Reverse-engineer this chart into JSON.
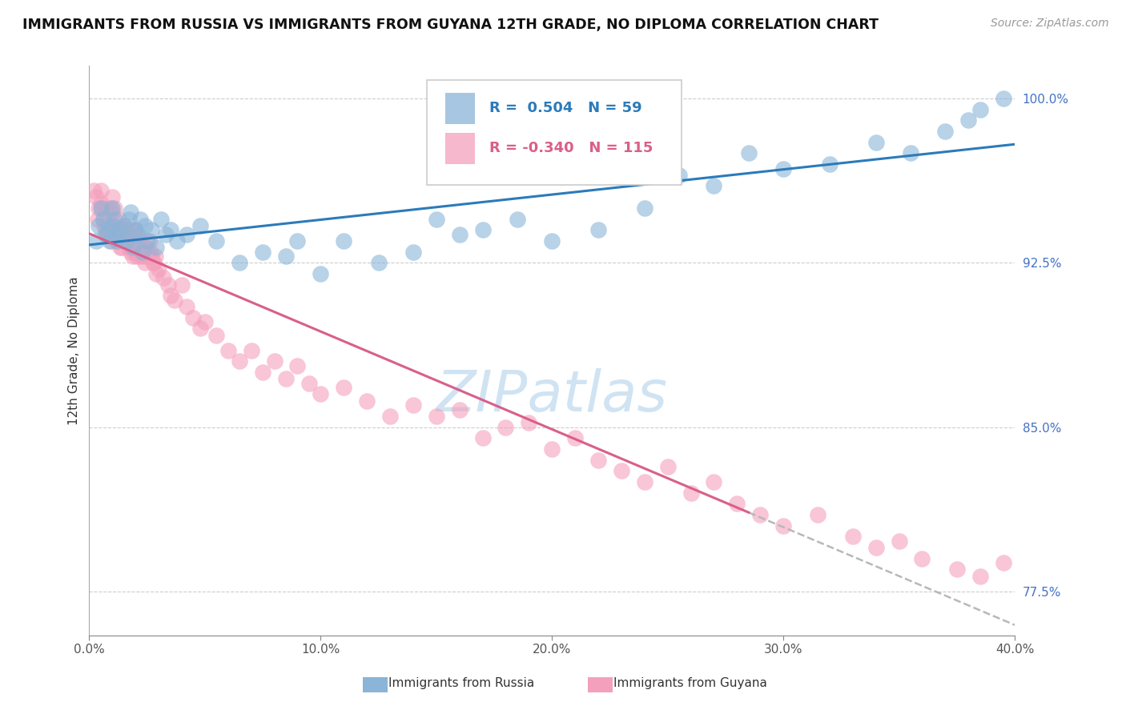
{
  "title": "IMMIGRANTS FROM RUSSIA VS IMMIGRANTS FROM GUYANA 12TH GRADE, NO DIPLOMA CORRELATION CHART",
  "source": "Source: ZipAtlas.com",
  "xlabel_russia": "Immigrants from Russia",
  "xlabel_guyana": "Immigrants from Guyana",
  "ylabel": "12th Grade, No Diploma",
  "x_min": 0.0,
  "x_max": 40.0,
  "y_min": 75.5,
  "y_max": 101.5,
  "y_ticks": [
    77.5,
    85.0,
    92.5,
    100.0
  ],
  "x_ticks": [
    0.0,
    10.0,
    20.0,
    30.0,
    40.0
  ],
  "r_russia": 0.504,
  "n_russia": 59,
  "r_guyana": -0.34,
  "n_guyana": 115,
  "color_russia": "#8ab4d8",
  "color_guyana": "#f4a0bc",
  "line_color_russia": "#2b7bba",
  "line_color_guyana": "#d95f8a",
  "watermark_color": "#c8dff0",
  "legend_box_color": "#e8f0fa",
  "russia_x": [
    0.3,
    0.4,
    0.5,
    0.6,
    0.7,
    0.8,
    0.9,
    1.0,
    1.0,
    1.1,
    1.2,
    1.3,
    1.4,
    1.5,
    1.6,
    1.7,
    1.8,
    1.9,
    2.0,
    2.1,
    2.2,
    2.3,
    2.4,
    2.5,
    2.7,
    2.9,
    3.1,
    3.3,
    3.5,
    3.8,
    4.2,
    4.8,
    5.5,
    6.5,
    7.5,
    8.5,
    9.0,
    10.0,
    11.0,
    12.5,
    14.0,
    15.0,
    16.0,
    17.0,
    18.5,
    20.0,
    22.0,
    24.0,
    25.5,
    27.0,
    28.5,
    30.0,
    32.0,
    34.0,
    35.5,
    37.0,
    38.0,
    38.5,
    39.5
  ],
  "russia_y": [
    93.5,
    94.2,
    95.0,
    94.5,
    93.8,
    94.0,
    93.5,
    94.2,
    95.0,
    94.5,
    93.5,
    94.0,
    93.8,
    94.2,
    93.5,
    94.5,
    94.8,
    93.2,
    94.0,
    93.8,
    94.5,
    93.0,
    94.2,
    93.5,
    94.0,
    93.2,
    94.5,
    93.8,
    94.0,
    93.5,
    93.8,
    94.2,
    93.5,
    92.5,
    93.0,
    92.8,
    93.5,
    92.0,
    93.5,
    92.5,
    93.0,
    94.5,
    93.8,
    94.0,
    94.5,
    93.5,
    94.0,
    95.0,
    96.5,
    96.0,
    97.5,
    96.8,
    97.0,
    98.0,
    97.5,
    98.5,
    99.0,
    99.5,
    100.0
  ],
  "guyana_x": [
    0.2,
    0.3,
    0.4,
    0.5,
    0.5,
    0.6,
    0.7,
    0.7,
    0.8,
    0.8,
    0.9,
    0.9,
    1.0,
    1.0,
    1.1,
    1.1,
    1.2,
    1.2,
    1.3,
    1.4,
    1.4,
    1.5,
    1.5,
    1.6,
    1.7,
    1.7,
    1.8,
    1.8,
    1.9,
    2.0,
    2.0,
    2.1,
    2.2,
    2.2,
    2.3,
    2.4,
    2.5,
    2.5,
    2.6,
    2.7,
    2.8,
    2.9,
    3.0,
    3.2,
    3.4,
    3.5,
    3.7,
    4.0,
    4.2,
    4.5,
    4.8,
    5.0,
    5.5,
    6.0,
    6.5,
    7.0,
    7.5,
    8.0,
    8.5,
    9.0,
    9.5,
    10.0,
    11.0,
    12.0,
    13.0,
    14.0,
    15.0,
    16.0,
    17.0,
    18.0,
    19.0,
    20.0,
    21.0,
    22.0,
    23.0,
    24.0,
    25.0,
    26.0,
    27.0,
    28.0,
    29.0,
    30.0,
    31.5,
    33.0,
    34.0,
    35.0,
    36.0,
    37.5,
    38.5,
    39.5,
    0.35,
    0.55,
    0.65,
    0.75,
    0.85,
    0.95,
    1.05,
    1.15,
    1.25,
    1.35,
    1.45,
    1.55,
    1.65,
    1.75,
    1.85,
    1.95,
    2.05,
    2.15,
    2.25,
    2.35,
    2.45,
    2.55,
    2.65,
    2.75,
    2.85
  ],
  "guyana_y": [
    95.8,
    95.5,
    95.0,
    95.2,
    95.8,
    94.5,
    94.0,
    95.0,
    94.5,
    93.8,
    94.2,
    95.0,
    94.8,
    95.5,
    94.2,
    95.0,
    94.0,
    93.5,
    93.8,
    94.0,
    93.2,
    93.5,
    94.2,
    93.8,
    93.2,
    94.0,
    93.5,
    93.0,
    92.8,
    93.2,
    94.0,
    93.0,
    92.8,
    93.5,
    93.2,
    92.5,
    93.0,
    92.8,
    93.5,
    92.8,
    92.5,
    92.0,
    92.2,
    91.8,
    91.5,
    91.0,
    90.8,
    91.5,
    90.5,
    90.0,
    89.5,
    89.8,
    89.2,
    88.5,
    88.0,
    88.5,
    87.5,
    88.0,
    87.2,
    87.8,
    87.0,
    86.5,
    86.8,
    86.2,
    85.5,
    86.0,
    85.5,
    85.8,
    84.5,
    85.0,
    85.2,
    84.0,
    84.5,
    83.5,
    83.0,
    82.5,
    83.2,
    82.0,
    82.5,
    81.5,
    81.0,
    80.5,
    81.0,
    80.0,
    79.5,
    79.8,
    79.0,
    78.5,
    78.2,
    78.8,
    94.5,
    95.0,
    94.2,
    93.8,
    94.0,
    93.5,
    94.0,
    93.8,
    94.5,
    93.2,
    93.8,
    93.5,
    94.0,
    93.2,
    93.8,
    93.0,
    92.8,
    93.5,
    93.0,
    92.8,
    93.2,
    92.8,
    93.0,
    92.5,
    92.8
  ]
}
